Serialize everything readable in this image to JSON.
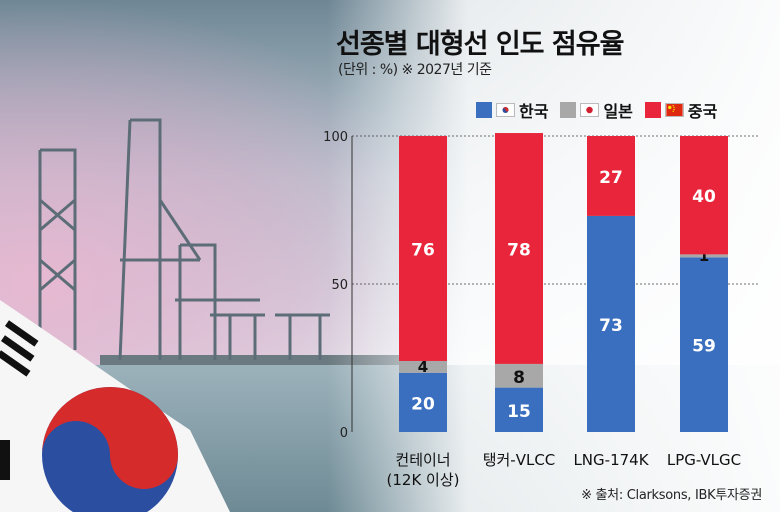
{
  "chart_data": {
    "type": "bar",
    "stacked": true,
    "title": "선종별 대형선 인도 점유율",
    "subtitle": "(단위 : %) ※ 2027년 기준",
    "categories": [
      "컨테이너 (12K 이상)",
      "탱커-VLCC",
      "LNG-174K",
      "LPG-VLGC"
    ],
    "category_lines": [
      [
        "컨테이너",
        "(12K 이상)"
      ],
      [
        "탱커-VLCC"
      ],
      [
        "LNG-174K"
      ],
      [
        "LPG-VLGC"
      ]
    ],
    "series": [
      {
        "name": "한국",
        "color": "#3a6fc0",
        "values": [
          20,
          15,
          73,
          59
        ]
      },
      {
        "name": "일본",
        "color": "#a8a8a8",
        "values": [
          4,
          8,
          0,
          1
        ]
      },
      {
        "name": "중국",
        "color": "#e8253a",
        "values": [
          76,
          78,
          27,
          40
        ]
      }
    ],
    "yticks": [
      0,
      50,
      100
    ],
    "ylim": [
      0,
      100
    ],
    "legend_position": "top-right",
    "grid": true
  },
  "source": "※ 출처: Clarksons, IBK투자증권",
  "icons": {
    "korea": "korea-flag-icon",
    "japan": "japan-flag-icon",
    "china": "china-flag-icon"
  }
}
